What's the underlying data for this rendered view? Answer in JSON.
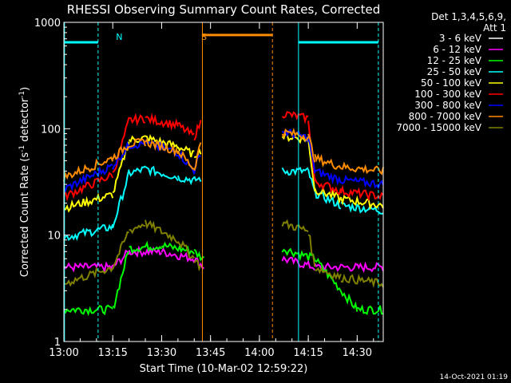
{
  "chart_data": {
    "type": "line",
    "title": "RHESSI Observing Summary Count Rates, Corrected",
    "xlabel": "Start Time (10-Mar-02 12:59:22)",
    "ylabel": "Corrected Count Rate (s⁻¹ detector⁻¹)",
    "ylabel_main": "Corrected Count Rate (s",
    "ylabel_sup1": "-1",
    "ylabel_mid": " detector",
    "ylabel_sup2": "-1",
    "ylabel_end": ")",
    "y_scale": "log",
    "ylim": [
      1,
      1000
    ],
    "xlim": [
      "13:00",
      "14:38"
    ],
    "x_ticks": [
      "13:00",
      "13:15",
      "13:30",
      "13:45",
      "14:00",
      "14:15",
      "14:30"
    ],
    "y_ticks": [
      "1",
      "10",
      "100",
      "1000"
    ],
    "legend_header_1": "Det 1,3,4,5,6,9,",
    "legend_header_2": "Att 1",
    "legend_placement": "right",
    "series": [
      {
        "name": "3 - 6 keV",
        "color": "#000000",
        "x": [
          "13:00",
          "13:15",
          "13:20",
          "13:30",
          "13:40",
          "13:43",
          "14:07",
          "14:17",
          "14:30",
          "14:38"
        ],
        "y": [
          1.5,
          1.5,
          3.0,
          3.0,
          2.5,
          2.0,
          2.5,
          2.0,
          1.5,
          1.5
        ]
      },
      {
        "name": "6 - 12 keV",
        "color": "#ff00ff",
        "x": [
          "13:00",
          "13:15",
          "13:20",
          "13:30",
          "13:40",
          "13:43",
          "14:07",
          "14:17",
          "14:30",
          "14:38"
        ],
        "y": [
          5,
          5,
          7,
          7,
          6,
          5,
          6,
          5,
          5,
          5
        ]
      },
      {
        "name": "12 - 25 keV",
        "color": "#00ff00",
        "x": [
          "13:00",
          "13:15",
          "13:20",
          "13:30",
          "13:40",
          "13:43",
          "14:07",
          "14:17",
          "14:30",
          "14:38"
        ],
        "y": [
          2,
          2,
          7.5,
          8,
          7,
          6,
          7.5,
          6,
          2,
          2
        ]
      },
      {
        "name": "25 - 50 keV",
        "color": "#00ffff",
        "x": [
          "13:00",
          "13:15",
          "13:20",
          "13:25",
          "13:35",
          "13:40",
          "13:42",
          "14:07",
          "14:15",
          "14:17",
          "14:25",
          "14:38"
        ],
        "y": [
          9.5,
          12,
          38,
          42,
          35,
          33,
          34,
          40,
          40,
          25,
          19,
          17
        ]
      },
      {
        "name": "50 - 100 keV",
        "color": "#ffff00",
        "x": [
          "13:00",
          "13:15",
          "13:20",
          "13:25",
          "13:35",
          "13:40",
          "13:42",
          "14:07",
          "14:15",
          "14:17",
          "14:25",
          "14:38"
        ],
        "y": [
          18,
          24,
          78,
          82,
          68,
          57,
          63,
          85,
          80,
          27,
          22,
          19
        ]
      },
      {
        "name": "100 - 300 keV",
        "color": "#ff0000",
        "x": [
          "13:00",
          "13:15",
          "13:20",
          "13:25",
          "13:35",
          "13:40",
          "13:42",
          "14:07",
          "14:15",
          "14:17",
          "14:25",
          "14:38"
        ],
        "y": [
          23,
          37,
          120,
          125,
          108,
          85,
          115,
          140,
          125,
          32,
          26,
          23
        ]
      },
      {
        "name": "300 - 800 keV",
        "color": "#0000ff",
        "x": [
          "13:00",
          "13:15",
          "13:20",
          "13:25",
          "13:35",
          "13:40",
          "13:42",
          "14:07",
          "14:15",
          "14:17",
          "14:25",
          "14:38"
        ],
        "y": [
          27,
          45,
          70,
          73,
          60,
          40,
          60,
          95,
          82,
          40,
          33,
          30
        ]
      },
      {
        "name": "800 - 7000 keV",
        "color": "#ff8c00",
        "x": [
          "13:00",
          "13:15",
          "13:20",
          "13:25",
          "13:35",
          "13:40",
          "13:42",
          "14:07",
          "14:15",
          "14:17",
          "14:25",
          "14:38"
        ],
        "y": [
          35,
          53,
          72,
          75,
          62,
          42,
          75,
          93,
          85,
          53,
          44,
          40
        ]
      },
      {
        "name": "7000 - 15000 keV",
        "color": "#808000",
        "x": [
          "13:00",
          "13:15",
          "13:20",
          "13:25",
          "13:35",
          "13:40",
          "13:42",
          "14:07",
          "14:15",
          "14:17",
          "14:25",
          "14:38"
        ],
        "y": [
          3.5,
          5,
          11,
          13,
          9,
          6,
          5,
          13,
          11,
          5,
          4,
          3.5
        ]
      }
    ],
    "annotations": [
      {
        "text": "N",
        "color": "#00ffff",
        "x": "13:17"
      },
      {
        "text": "S",
        "color": "#ff8c00",
        "x": "13:43"
      }
    ]
  },
  "footer_date": "14-Oct-2021 01:19"
}
